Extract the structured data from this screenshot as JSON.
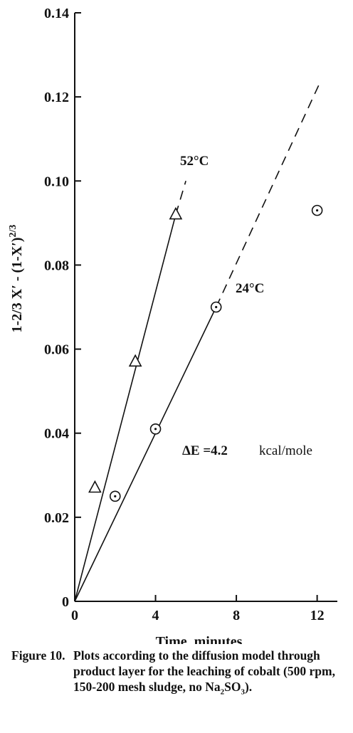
{
  "chart_data": {
    "type": "scatter",
    "xlabel": "Time, minutes",
    "ylabel": "1-2/3 X′ - (1-X′)2/3",
    "ylabel_main": "1-2/3 X′ - (1-X′)",
    "ylabel_sup": "2/3",
    "xlim": [
      0,
      13
    ],
    "ylim": [
      0,
      0.14
    ],
    "xticks": [
      "0",
      "4",
      "8",
      "12"
    ],
    "xtick_values": [
      0,
      4,
      8,
      12
    ],
    "yticks": [
      "0",
      "0.02",
      "0.04",
      "0.06",
      "0.08",
      "0.10",
      "0.12",
      "0.14"
    ],
    "ytick_values": [
      0,
      0.02,
      0.04,
      0.06,
      0.08,
      0.1,
      0.12,
      0.14
    ],
    "grid": false,
    "series": [
      {
        "name": "52°C",
        "marker": "triangle",
        "points": [
          [
            1,
            0.027
          ],
          [
            3,
            0.057
          ],
          [
            5,
            0.092
          ]
        ],
        "fit_solid": [
          [
            0,
            0
          ],
          [
            5,
            0.092
          ]
        ],
        "fit_dashed": [
          [
            5,
            0.092
          ],
          [
            5.5,
            0.1
          ]
        ]
      },
      {
        "name": "24°C",
        "marker": "circle-dot",
        "points": [
          [
            2,
            0.025
          ],
          [
            4,
            0.041
          ],
          [
            7,
            0.07
          ],
          [
            12,
            0.093
          ]
        ],
        "fit_solid": [
          [
            0,
            0
          ],
          [
            7,
            0.07
          ]
        ],
        "fit_dashed": [
          [
            7,
            0.07
          ],
          [
            12.1,
            0.123
          ]
        ]
      }
    ],
    "annotations": {
      "label_52": "52°C",
      "label_24": "24°C",
      "delta_e": "ΔE =4.2",
      "delta_e_unit": "kcal/mole"
    }
  },
  "caption": {
    "label": "Figure 10.",
    "text_before": "Plots according to the diffusion model through product layer for the leaching of cobalt (500 rpm, 150-200 mesh sludge, no Na",
    "sub1": "2",
    "mid": "SO",
    "sub2": "3",
    "text_after": ")."
  }
}
